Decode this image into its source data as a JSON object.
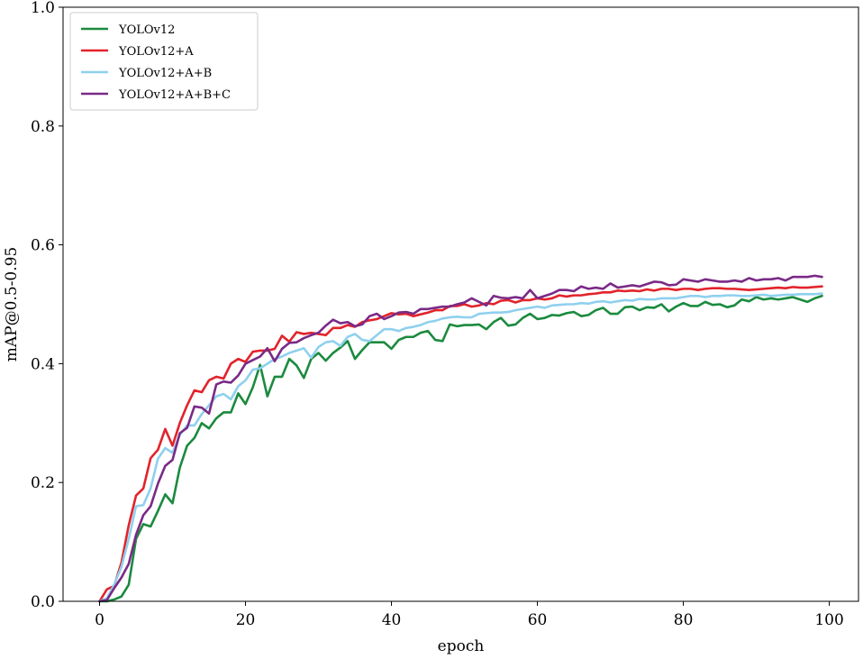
{
  "chart_data": {
    "type": "line",
    "xlabel": "epoch",
    "ylabel": "mAP@0.5-0.95",
    "xlim": [
      -5,
      104
    ],
    "ylim": [
      0.0,
      1.0
    ],
    "xticks": [
      "0",
      "20",
      "40",
      "60",
      "80",
      "100"
    ],
    "xtick_values": [
      0,
      20,
      40,
      60,
      80,
      100
    ],
    "yticks": [
      "0.0",
      "0.2",
      "0.4",
      "0.6",
      "0.8",
      "1.0"
    ],
    "ytick_values": [
      0.0,
      0.2,
      0.4,
      0.6,
      0.8,
      1.0
    ],
    "grid": false,
    "legend": "upper-left",
    "x": [
      0,
      1,
      2,
      3,
      4,
      5,
      6,
      7,
      8,
      9,
      10,
      11,
      12,
      13,
      14,
      15,
      16,
      17,
      18,
      19,
      20,
      21,
      22,
      23,
      24,
      25,
      26,
      27,
      28,
      29,
      30,
      31,
      32,
      33,
      34,
      35,
      36,
      37,
      38,
      39,
      40,
      41,
      42,
      43,
      44,
      45,
      46,
      47,
      48,
      49,
      50,
      51,
      52,
      53,
      54,
      55,
      56,
      57,
      58,
      59,
      60,
      61,
      62,
      63,
      64,
      65,
      66,
      67,
      68,
      69,
      70,
      71,
      72,
      73,
      74,
      75,
      76,
      77,
      78,
      79,
      80,
      81,
      82,
      83,
      84,
      85,
      86,
      87,
      88,
      89,
      90,
      91,
      92,
      93,
      94,
      95,
      96,
      97,
      98,
      99
    ],
    "series": [
      {
        "name": "YOLOv12",
        "color": "#1b8a3e",
        "values": [
          0.0,
          0.0,
          0.003,
          0.008,
          0.028,
          0.105,
          0.13,
          0.126,
          0.152,
          0.18,
          0.165,
          0.225,
          0.262,
          0.275,
          0.3,
          0.291,
          0.308,
          0.318,
          0.318,
          0.35,
          0.332,
          0.36,
          0.398,
          0.345,
          0.378,
          0.378,
          0.408,
          0.397,
          0.376,
          0.408,
          0.418,
          0.405,
          0.418,
          0.427,
          0.438,
          0.408,
          0.423,
          0.436,
          0.436,
          0.436,
          0.425,
          0.44,
          0.445,
          0.445,
          0.452,
          0.455,
          0.44,
          0.438,
          0.466,
          0.463,
          0.465,
          0.465,
          0.466,
          0.458,
          0.47,
          0.477,
          0.464,
          0.466,
          0.477,
          0.484,
          0.475,
          0.477,
          0.482,
          0.481,
          0.485,
          0.487,
          0.48,
          0.482,
          0.49,
          0.494,
          0.484,
          0.484,
          0.495,
          0.496,
          0.49,
          0.495,
          0.494,
          0.5,
          0.488,
          0.496,
          0.502,
          0.497,
          0.497,
          0.504,
          0.499,
          0.5,
          0.495,
          0.498,
          0.508,
          0.505,
          0.512,
          0.508,
          0.51,
          0.508,
          0.51,
          0.512,
          0.508,
          0.504,
          0.51,
          0.514
        ]
      },
      {
        "name": "YOLOv12+A",
        "color": "#e2232b",
        "values": [
          0.0,
          0.02,
          0.026,
          0.065,
          0.128,
          0.178,
          0.19,
          0.241,
          0.255,
          0.29,
          0.262,
          0.3,
          0.33,
          0.355,
          0.352,
          0.372,
          0.378,
          0.375,
          0.4,
          0.408,
          0.403,
          0.42,
          0.422,
          0.422,
          0.425,
          0.447,
          0.437,
          0.453,
          0.45,
          0.452,
          0.45,
          0.448,
          0.46,
          0.46,
          0.465,
          0.462,
          0.47,
          0.473,
          0.475,
          0.48,
          0.485,
          0.483,
          0.484,
          0.48,
          0.483,
          0.486,
          0.49,
          0.49,
          0.497,
          0.497,
          0.5,
          0.496,
          0.498,
          0.502,
          0.5,
          0.506,
          0.507,
          0.503,
          0.507,
          0.507,
          0.51,
          0.508,
          0.51,
          0.515,
          0.513,
          0.515,
          0.515,
          0.517,
          0.518,
          0.52,
          0.52,
          0.523,
          0.522,
          0.523,
          0.522,
          0.525,
          0.523,
          0.526,
          0.526,
          0.524,
          0.526,
          0.526,
          0.524,
          0.526,
          0.527,
          0.527,
          0.526,
          0.526,
          0.525,
          0.524,
          0.525,
          0.526,
          0.527,
          0.528,
          0.527,
          0.529,
          0.528,
          0.528,
          0.529,
          0.53
        ]
      },
      {
        "name": "YOLOv12+A+B",
        "color": "#8fd0ee",
        "values": [
          0.0,
          0.005,
          0.028,
          0.058,
          0.105,
          0.16,
          0.162,
          0.19,
          0.24,
          0.258,
          0.25,
          0.28,
          0.296,
          0.296,
          0.315,
          0.33,
          0.345,
          0.349,
          0.34,
          0.362,
          0.372,
          0.39,
          0.392,
          0.4,
          0.408,
          0.412,
          0.418,
          0.422,
          0.426,
          0.41,
          0.428,
          0.436,
          0.438,
          0.43,
          0.445,
          0.45,
          0.44,
          0.438,
          0.448,
          0.458,
          0.458,
          0.455,
          0.46,
          0.462,
          0.465,
          0.47,
          0.472,
          0.476,
          0.478,
          0.479,
          0.478,
          0.478,
          0.484,
          0.485,
          0.486,
          0.486,
          0.487,
          0.49,
          0.492,
          0.494,
          0.496,
          0.494,
          0.498,
          0.499,
          0.5,
          0.5,
          0.502,
          0.501,
          0.504,
          0.505,
          0.503,
          0.505,
          0.507,
          0.506,
          0.509,
          0.508,
          0.508,
          0.51,
          0.51,
          0.51,
          0.512,
          0.514,
          0.514,
          0.512,
          0.514,
          0.514,
          0.515,
          0.515,
          0.514,
          0.514,
          0.515,
          0.516,
          0.514,
          0.515,
          0.516,
          0.516,
          0.517,
          0.517,
          0.517,
          0.518
        ]
      },
      {
        "name": "YOLOv12+A+B+C",
        "color": "#7a2a87",
        "values": [
          0.0,
          0.002,
          0.022,
          0.04,
          0.063,
          0.112,
          0.145,
          0.16,
          0.198,
          0.228,
          0.238,
          0.283,
          0.292,
          0.328,
          0.326,
          0.316,
          0.365,
          0.37,
          0.368,
          0.38,
          0.4,
          0.406,
          0.412,
          0.426,
          0.404,
          0.425,
          0.435,
          0.436,
          0.443,
          0.448,
          0.452,
          0.464,
          0.474,
          0.468,
          0.47,
          0.463,
          0.466,
          0.48,
          0.484,
          0.475,
          0.48,
          0.486,
          0.487,
          0.484,
          0.492,
          0.492,
          0.494,
          0.496,
          0.496,
          0.5,
          0.503,
          0.51,
          0.504,
          0.498,
          0.514,
          0.511,
          0.51,
          0.512,
          0.51,
          0.524,
          0.51,
          0.514,
          0.518,
          0.524,
          0.524,
          0.522,
          0.53,
          0.526,
          0.528,
          0.526,
          0.535,
          0.528,
          0.53,
          0.532,
          0.53,
          0.534,
          0.538,
          0.537,
          0.532,
          0.533,
          0.542,
          0.54,
          0.538,
          0.542,
          0.54,
          0.538,
          0.538,
          0.54,
          0.538,
          0.544,
          0.54,
          0.542,
          0.542,
          0.544,
          0.54,
          0.546,
          0.546,
          0.546,
          0.548,
          0.546
        ]
      }
    ]
  }
}
